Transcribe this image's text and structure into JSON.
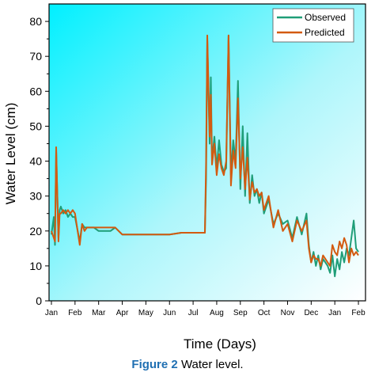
{
  "caption": {
    "label": "Figure 2",
    "text": "Water level."
  },
  "chart_data": {
    "type": "line",
    "xlabel": "Time (Days)",
    "ylabel": "Water Level (cm)",
    "x_tick_labels": [
      "Jan",
      "Feb",
      "Mar",
      "Apr",
      "May",
      "Jun",
      "Jul",
      "Aug",
      "Sep",
      "Oct",
      "Nov",
      "Dec",
      "Jan",
      "Feb"
    ],
    "ylim": [
      0,
      85
    ],
    "yticks": [
      0,
      10,
      20,
      30,
      40,
      50,
      60,
      70,
      80
    ],
    "xlim": [
      -0.1,
      13.3
    ],
    "legend_position": "top-right",
    "background": "gradient cyan-to-white",
    "series": [
      {
        "name": "Observed",
        "color": "#1f9e78",
        "x": [
          0.0,
          0.1,
          0.15,
          0.2,
          0.3,
          0.35,
          0.4,
          0.5,
          0.6,
          0.7,
          0.8,
          0.9,
          1.0,
          1.2,
          1.3,
          1.4,
          1.5,
          1.6,
          1.8,
          2.0,
          2.5,
          2.7,
          3.0,
          3.5,
          4.0,
          5.0,
          5.5,
          6.0,
          6.5,
          6.55,
          6.6,
          6.7,
          6.75,
          6.8,
          6.9,
          7.0,
          7.1,
          7.2,
          7.3,
          7.4,
          7.5,
          7.6,
          7.7,
          7.8,
          7.9,
          8.0,
          8.1,
          8.2,
          8.3,
          8.4,
          8.5,
          8.6,
          8.7,
          8.8,
          8.9,
          9.0,
          9.2,
          9.4,
          9.6,
          9.8,
          10.0,
          10.2,
          10.4,
          10.6,
          10.8,
          10.9,
          11.0,
          11.1,
          11.2,
          11.3,
          11.4,
          11.5,
          11.6,
          11.7,
          11.8,
          11.9,
          12.0,
          12.1,
          12.2,
          12.3,
          12.4,
          12.5,
          12.6,
          12.7,
          12.8,
          12.9,
          13.0
        ],
        "y": [
          19,
          24,
          16,
          43,
          18,
          26,
          27,
          25,
          26,
          24,
          25,
          24,
          24,
          17,
          22,
          21,
          21,
          21,
          21,
          20,
          20,
          21,
          19,
          19,
          19,
          19,
          19.5,
          19.5,
          19.5,
          35,
          75,
          45,
          64,
          40,
          47,
          38,
          46,
          39,
          37,
          38,
          76,
          36,
          46,
          40,
          63,
          32,
          50,
          30,
          48,
          28,
          36,
          30,
          32,
          28,
          31,
          25,
          29,
          22,
          25,
          22,
          23,
          18,
          24,
          19,
          25,
          16,
          11,
          14,
          10,
          13,
          9,
          12,
          11,
          10,
          8,
          13,
          7,
          12,
          9,
          14,
          11,
          15,
          13,
          18,
          23,
          15,
          14
        ]
      },
      {
        "name": "Predicted",
        "color": "#d35a10",
        "x": [
          0.0,
          0.1,
          0.15,
          0.2,
          0.3,
          0.35,
          0.4,
          0.5,
          0.6,
          0.7,
          0.8,
          0.9,
          1.0,
          1.2,
          1.3,
          1.4,
          1.5,
          1.6,
          1.8,
          2.0,
          2.5,
          2.7,
          3.0,
          3.5,
          4.0,
          5.0,
          5.5,
          6.0,
          6.5,
          6.55,
          6.6,
          6.7,
          6.75,
          6.8,
          6.9,
          7.0,
          7.1,
          7.2,
          7.3,
          7.4,
          7.5,
          7.6,
          7.7,
          7.8,
          7.9,
          8.0,
          8.1,
          8.2,
          8.3,
          8.4,
          8.5,
          8.6,
          8.7,
          8.8,
          8.9,
          9.0,
          9.2,
          9.4,
          9.6,
          9.8,
          10.0,
          10.2,
          10.4,
          10.6,
          10.8,
          10.9,
          11.0,
          11.1,
          11.2,
          11.3,
          11.4,
          11.5,
          11.6,
          11.7,
          11.8,
          11.9,
          12.0,
          12.1,
          12.2,
          12.3,
          12.4,
          12.5,
          12.6,
          12.7,
          12.8,
          12.9,
          13.0
        ],
        "y": [
          20,
          18,
          17,
          44,
          17,
          25,
          25,
          26,
          25,
          26,
          25,
          26,
          25,
          16,
          22,
          20,
          21,
          21,
          21,
          21,
          21,
          21,
          19,
          19,
          19,
          19,
          19.5,
          19.5,
          19.5,
          40,
          76,
          47,
          59,
          39,
          45,
          36,
          42,
          38,
          36,
          40,
          76,
          33,
          43,
          38,
          58,
          35,
          44,
          32,
          41,
          29,
          34,
          31,
          32,
          30,
          31,
          26,
          30,
          21,
          26,
          20,
          22,
          17,
          23,
          20,
          23,
          15,
          11,
          13,
          12,
          12,
          10,
          13,
          12,
          11,
          10,
          16,
          14,
          13,
          17,
          15,
          18,
          16,
          11,
          15,
          13,
          14,
          13
        ]
      }
    ]
  }
}
